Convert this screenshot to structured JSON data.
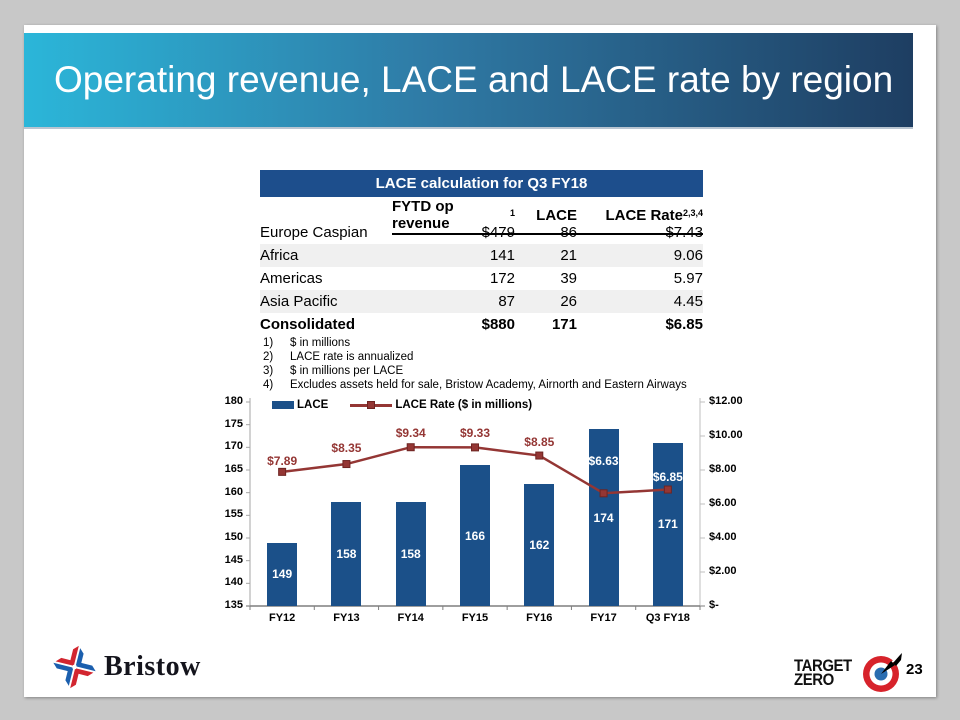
{
  "slide": {
    "title": "Operating revenue, LACE and LACE rate by region",
    "page_number": "23"
  },
  "colors": {
    "banner_gradient_start": "#2bb6d9",
    "banner_gradient_end": "#1e3e62",
    "table_header_blue": "#1d4e8c",
    "bar_blue": "#1b5089",
    "line_dark_red": "#943634",
    "row_shade": "#f0f0f0"
  },
  "table": {
    "title": "LACE calculation for Q3 FY18",
    "columns": [
      {
        "label": "",
        "sup": ""
      },
      {
        "label": "FYTD op revenue",
        "sup": "1"
      },
      {
        "label": "LACE",
        "sup": ""
      },
      {
        "label": "LACE Rate",
        "sup": "2,3,4"
      }
    ],
    "rows": [
      {
        "label": "Europe Caspian",
        "revenue": "$479",
        "lace": "86",
        "rate": "$7.43",
        "shaded": false,
        "bold": false
      },
      {
        "label": "Africa",
        "revenue": "141",
        "lace": "21",
        "rate": "9.06",
        "shaded": true,
        "bold": false
      },
      {
        "label": "Americas",
        "revenue": "172",
        "lace": "39",
        "rate": "5.97",
        "shaded": false,
        "bold": false
      },
      {
        "label": "Asia Pacific",
        "revenue": "87",
        "lace": "26",
        "rate": "4.45",
        "shaded": true,
        "bold": false
      },
      {
        "label": "Consolidated",
        "revenue": "$880",
        "lace": "171",
        "rate": "$6.85",
        "shaded": false,
        "bold": true
      }
    ]
  },
  "footnotes": [
    {
      "num": "1)",
      "text": "$ in millions"
    },
    {
      "num": "2)",
      "text": "LACE rate is annualized"
    },
    {
      "num": "3)",
      "text": "$ in millions per LACE"
    },
    {
      "num": "4)",
      "text": "Excludes assets held for sale, Bristow Academy, Airnorth and Eastern Airways"
    }
  ],
  "chart_data": {
    "type": "bar",
    "categories": [
      "FY12",
      "FY13",
      "FY14",
      "FY15",
      "FY16",
      "FY17",
      "Q3 FY18"
    ],
    "series": [
      {
        "name": "LACE",
        "type": "bar",
        "axis": "left",
        "color": "#1b5089",
        "values": [
          149,
          158,
          158,
          166,
          162,
          174,
          171
        ],
        "labels": [
          "149",
          "158",
          "158",
          "166",
          "162",
          "174",
          "171"
        ]
      },
      {
        "name": "LACE Rate ($ in millions)",
        "type": "line",
        "axis": "right",
        "color": "#943634",
        "values": [
          7.89,
          8.35,
          9.34,
          9.33,
          8.85,
          6.63,
          6.85
        ],
        "labels": [
          "$7.89",
          "$8.35",
          "$9.34",
          "$9.33",
          "$8.85",
          "$6.63",
          "$6.85"
        ],
        "label_colors": [
          "red",
          "red",
          "red",
          "red",
          "red",
          "white",
          "white"
        ],
        "label_dy": [
          -11,
          -16,
          -14,
          -14,
          -14,
          -32,
          -13
        ]
      }
    ],
    "left_axis": {
      "min": 135,
      "max": 180,
      "step": 5,
      "ticks": [
        "180",
        "175",
        "170",
        "165",
        "160",
        "155",
        "150",
        "145",
        "140",
        "135"
      ]
    },
    "right_axis": {
      "min": 0,
      "max": 12,
      "step": 2,
      "ticks": [
        "$12.00",
        "$10.00",
        "$8.00",
        "$6.00",
        "$4.00",
        "$2.00",
        "$-"
      ]
    },
    "legend_position": "top-left-inside",
    "grid": false,
    "title": "",
    "xlabel": "",
    "ylabel": ""
  },
  "logos": {
    "bristow": "Bristow",
    "target_line1": "TARGET",
    "target_line2": "ZERO"
  }
}
